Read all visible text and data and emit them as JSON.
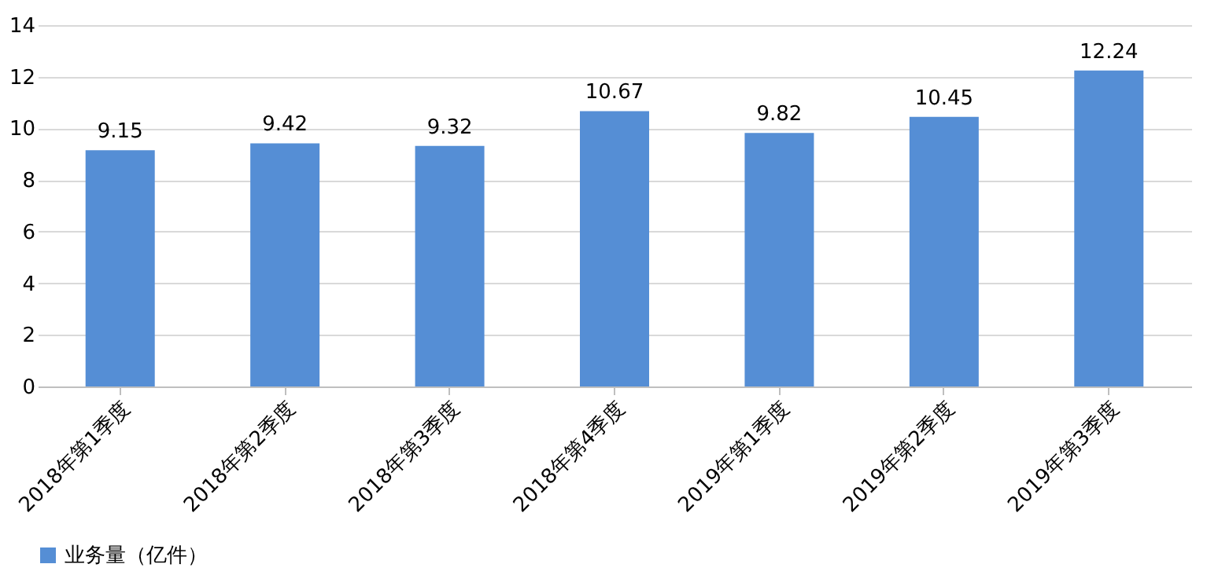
{
  "chart_data": {
    "type": "bar",
    "categories": [
      "2018年第1季度",
      "2018年第2季度",
      "2018年第3季度",
      "2018年第4季度",
      "2019年第1季度",
      "2019年第2季度",
      "2019年第3季度"
    ],
    "series": [
      {
        "name": "业务量（亿件）",
        "color": "#558ed5",
        "values": [
          9.15,
          9.42,
          9.32,
          10.67,
          9.82,
          10.45,
          12.24
        ]
      }
    ],
    "ylim": [
      0,
      14
    ],
    "yticks": [
      0,
      2,
      4,
      6,
      8,
      10,
      12,
      14
    ],
    "grid": "y",
    "legend": "bottom",
    "data_labels": true
  }
}
